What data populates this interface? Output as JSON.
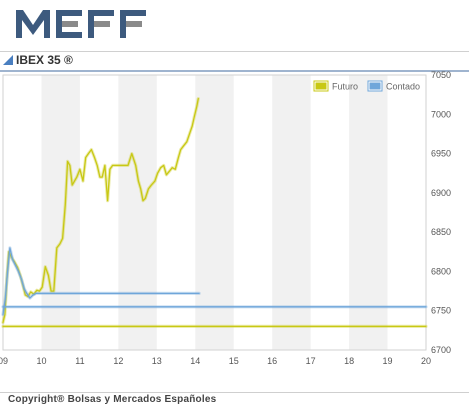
{
  "brand": {
    "logo_text": "MEFF"
  },
  "header": {
    "title": "IBEX 35 ®"
  },
  "footer": {
    "copyright": "Copyright® Bolsas y Mercados Españoles"
  },
  "colors": {
    "futuro": "#c8c814",
    "contado": "#6fa6da",
    "stripe": "#f1f1f1"
  },
  "chart_data": {
    "type": "line",
    "title": "IBEX 35 ®",
    "xlabel": "",
    "ylabel": "",
    "x_ticks": [
      "09",
      "10",
      "11",
      "12",
      "13",
      "14",
      "15",
      "16",
      "17",
      "18",
      "19",
      "20"
    ],
    "x_range": [
      9,
      20
    ],
    "y_ticks": [
      6700,
      6750,
      6800,
      6850,
      6900,
      6950,
      7000,
      7050
    ],
    "ylim": [
      6700,
      7050
    ],
    "grid": "alternating vertical bands",
    "legend": {
      "placement": "top-right",
      "entries": [
        "Futuro",
        "Contado"
      ]
    },
    "series": [
      {
        "name": "Futuro",
        "color": "#c8c814",
        "points": [
          [
            9.0,
            6735
          ],
          [
            9.05,
            6745
          ],
          [
            9.1,
            6790
          ],
          [
            9.15,
            6825
          ],
          [
            9.22,
            6818
          ],
          [
            9.3,
            6812
          ],
          [
            9.38,
            6805
          ],
          [
            9.45,
            6795
          ],
          [
            9.52,
            6782
          ],
          [
            9.58,
            6770
          ],
          [
            9.65,
            6768
          ],
          [
            9.72,
            6774
          ],
          [
            9.8,
            6771
          ],
          [
            9.88,
            6776
          ],
          [
            9.95,
            6775
          ],
          [
            10.02,
            6780
          ],
          [
            10.1,
            6806
          ],
          [
            10.18,
            6795
          ],
          [
            10.25,
            6775
          ],
          [
            10.32,
            6775
          ],
          [
            10.4,
            6830
          ],
          [
            10.48,
            6835
          ],
          [
            10.55,
            6842
          ],
          [
            10.62,
            6885
          ],
          [
            10.68,
            6940
          ],
          [
            10.74,
            6935
          ],
          [
            10.8,
            6910
          ],
          [
            10.86,
            6915
          ],
          [
            10.92,
            6920
          ],
          [
            11.0,
            6930
          ],
          [
            11.08,
            6915
          ],
          [
            11.15,
            6945
          ],
          [
            11.22,
            6950
          ],
          [
            11.3,
            6955
          ],
          [
            11.38,
            6945
          ],
          [
            11.45,
            6935
          ],
          [
            11.52,
            6920
          ],
          [
            11.58,
            6920
          ],
          [
            11.65,
            6935
          ],
          [
            11.72,
            6890
          ],
          [
            11.78,
            6930
          ],
          [
            11.85,
            6935
          ],
          [
            11.95,
            6935
          ],
          [
            12.05,
            6935
          ],
          [
            12.15,
            6935
          ],
          [
            12.25,
            6935
          ],
          [
            12.35,
            6950
          ],
          [
            12.45,
            6935
          ],
          [
            12.52,
            6915
          ],
          [
            12.58,
            6905
          ],
          [
            12.64,
            6890
          ],
          [
            12.7,
            6893
          ],
          [
            12.78,
            6905
          ],
          [
            12.86,
            6910
          ],
          [
            12.95,
            6915
          ],
          [
            13.02,
            6925
          ],
          [
            13.1,
            6932
          ],
          [
            13.18,
            6935
          ],
          [
            13.25,
            6923
          ],
          [
            13.32,
            6927
          ],
          [
            13.4,
            6932
          ],
          [
            13.48,
            6930
          ],
          [
            13.56,
            6945
          ],
          [
            13.62,
            6955
          ],
          [
            13.7,
            6960
          ],
          [
            13.78,
            6965
          ],
          [
            13.85,
            6975
          ],
          [
            13.92,
            6985
          ],
          [
            13.98,
            6998
          ],
          [
            14.04,
            7010
          ],
          [
            14.08,
            7020
          ]
        ]
      },
      {
        "name": "Contado",
        "color": "#6fa6da",
        "points": [
          [
            9.0,
            6745
          ],
          [
            9.06,
            6765
          ],
          [
            9.12,
            6800
          ],
          [
            9.18,
            6830
          ],
          [
            9.25,
            6815
          ],
          [
            9.32,
            6808
          ],
          [
            9.4,
            6800
          ],
          [
            9.48,
            6790
          ],
          [
            9.55,
            6778
          ],
          [
            9.62,
            6772
          ],
          [
            9.7,
            6766
          ],
          [
            9.78,
            6770
          ],
          [
            9.86,
            6772
          ],
          [
            9.95,
            6772
          ],
          [
            10.2,
            6772
          ],
          [
            11.0,
            6772
          ],
          [
            12.0,
            6772
          ],
          [
            13.0,
            6772
          ],
          [
            14.0,
            6772
          ],
          [
            14.1,
            6772
          ]
        ]
      },
      {
        "name": "Futuro",
        "color": "#c8c814",
        "points": [
          [
            9.0,
            6730
          ],
          [
            20.0,
            6730
          ]
        ]
      },
      {
        "name": "Contado",
        "color": "#6fa6da",
        "points": [
          [
            9.0,
            6755
          ],
          [
            20.0,
            6755
          ]
        ]
      }
    ]
  }
}
